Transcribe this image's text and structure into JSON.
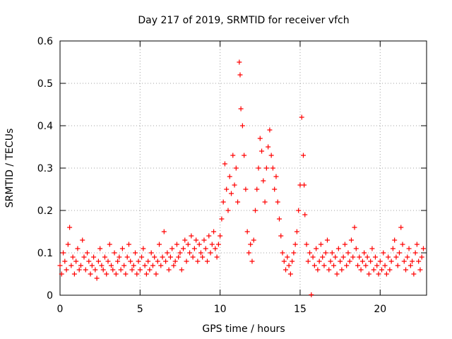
{
  "chart_data": {
    "type": "scatter",
    "title": "Day 217 of 2019, SRMTID for receiver vfch",
    "xlabel": "GPS time / hours",
    "ylabel": "SRMTID / TECUs",
    "xlim": [
      0,
      22.9
    ],
    "ylim": [
      0,
      0.6
    ],
    "x_ticks": [
      0,
      5,
      10,
      15,
      20
    ],
    "x_tick_labels": [
      "0",
      "5",
      "10",
      "15",
      "20"
    ],
    "y_ticks": [
      0,
      0.1,
      0.2,
      0.3,
      0.4,
      0.5,
      0.6
    ],
    "y_tick_labels": [
      "0",
      "0.1",
      "0.2",
      "0.3",
      "0.4",
      "0.5",
      "0.6"
    ],
    "grid": true,
    "marker": "+",
    "series": [
      {
        "name": "SRMTID",
        "color": "#ff0000",
        "x": [
          0.0,
          0.1,
          0.2,
          0.3,
          0.4,
          0.5,
          0.6,
          0.7,
          0.8,
          0.9,
          1.0,
          1.1,
          1.2,
          1.3,
          1.4,
          1.5,
          1.6,
          1.7,
          1.8,
          1.9,
          2.0,
          2.1,
          2.2,
          2.3,
          2.4,
          2.5,
          2.6,
          2.7,
          2.8,
          2.9,
          3.0,
          3.1,
          3.2,
          3.3,
          3.4,
          3.5,
          3.6,
          3.7,
          3.8,
          3.9,
          4.0,
          4.1,
          4.2,
          4.3,
          4.4,
          4.5,
          4.6,
          4.7,
          4.8,
          4.9,
          5.0,
          5.1,
          5.2,
          5.3,
          5.4,
          5.5,
          5.6,
          5.7,
          5.8,
          5.9,
          6.0,
          6.1,
          6.2,
          6.3,
          6.4,
          6.5,
          6.6,
          6.7,
          6.8,
          6.9,
          7.0,
          7.1,
          7.2,
          7.3,
          7.4,
          7.5,
          7.6,
          7.7,
          7.8,
          7.9,
          8.0,
          8.1,
          8.2,
          8.3,
          8.4,
          8.5,
          8.6,
          8.7,
          8.8,
          8.9,
          9.0,
          9.1,
          9.2,
          9.3,
          9.4,
          9.5,
          9.6,
          9.7,
          9.8,
          9.9,
          10.0,
          10.1,
          10.2,
          10.3,
          10.4,
          10.5,
          10.6,
          10.7,
          10.8,
          10.9,
          11.0,
          11.1,
          11.2,
          11.25,
          11.3,
          11.4,
          11.5,
          11.6,
          11.7,
          11.8,
          11.9,
          12.0,
          12.1,
          12.2,
          12.3,
          12.4,
          12.5,
          12.6,
          12.7,
          12.8,
          12.9,
          13.0,
          13.1,
          13.2,
          13.3,
          13.4,
          13.5,
          13.6,
          13.7,
          13.8,
          13.9,
          14.0,
          14.1,
          14.2,
          14.3,
          14.4,
          14.5,
          14.6,
          14.7,
          14.8,
          14.9,
          15.0,
          15.1,
          15.2,
          15.25,
          15.3,
          15.4,
          15.5,
          15.6,
          15.7,
          15.8,
          15.9,
          16.0,
          16.1,
          16.2,
          16.3,
          16.4,
          16.5,
          16.6,
          16.7,
          16.8,
          16.9,
          17.0,
          17.1,
          17.2,
          17.3,
          17.4,
          17.5,
          17.6,
          17.7,
          17.8,
          17.9,
          18.0,
          18.1,
          18.2,
          18.3,
          18.4,
          18.5,
          18.6,
          18.7,
          18.8,
          18.9,
          19.0,
          19.1,
          19.2,
          19.3,
          19.4,
          19.5,
          19.6,
          19.7,
          19.8,
          19.9,
          20.0,
          20.1,
          20.2,
          20.3,
          20.4,
          20.5,
          20.6,
          20.7,
          20.8,
          20.9,
          21.0,
          21.1,
          21.2,
          21.3,
          21.4,
          21.5,
          21.6,
          21.7,
          21.8,
          21.9,
          22.0,
          22.1,
          22.2,
          22.3,
          22.4,
          22.5,
          22.6,
          22.7
        ],
        "y": [
          0.07,
          0.05,
          0.1,
          0.08,
          0.06,
          0.12,
          0.16,
          0.07,
          0.09,
          0.05,
          0.08,
          0.11,
          0.06,
          0.07,
          0.13,
          0.09,
          0.06,
          0.1,
          0.08,
          0.05,
          0.07,
          0.09,
          0.06,
          0.04,
          0.08,
          0.11,
          0.07,
          0.06,
          0.09,
          0.05,
          0.08,
          0.12,
          0.07,
          0.06,
          0.1,
          0.05,
          0.08,
          0.09,
          0.06,
          0.11,
          0.07,
          0.05,
          0.09,
          0.12,
          0.08,
          0.06,
          0.07,
          0.1,
          0.05,
          0.08,
          0.06,
          0.09,
          0.11,
          0.07,
          0.05,
          0.08,
          0.06,
          0.1,
          0.07,
          0.09,
          0.05,
          0.08,
          0.12,
          0.07,
          0.09,
          0.15,
          0.08,
          0.1,
          0.06,
          0.09,
          0.11,
          0.07,
          0.08,
          0.12,
          0.09,
          0.1,
          0.06,
          0.11,
          0.13,
          0.08,
          0.12,
          0.1,
          0.14,
          0.09,
          0.11,
          0.13,
          0.08,
          0.12,
          0.1,
          0.09,
          0.13,
          0.11,
          0.08,
          0.14,
          0.1,
          0.12,
          0.15,
          0.11,
          0.09,
          0.12,
          0.14,
          0.18,
          0.22,
          0.31,
          0.25,
          0.2,
          0.28,
          0.24,
          0.33,
          0.26,
          0.3,
          0.22,
          0.55,
          0.52,
          0.44,
          0.4,
          0.33,
          0.25,
          0.15,
          0.1,
          0.12,
          0.08,
          0.13,
          0.2,
          0.25,
          0.3,
          0.37,
          0.34,
          0.27,
          0.22,
          0.3,
          0.35,
          0.39,
          0.33,
          0.3,
          0.25,
          0.28,
          0.22,
          0.18,
          0.14,
          0.1,
          0.08,
          0.06,
          0.09,
          0.07,
          0.05,
          0.08,
          0.1,
          0.12,
          0.15,
          0.2,
          0.26,
          0.42,
          0.33,
          0.26,
          0.19,
          0.12,
          0.08,
          0.1,
          0.001,
          0.09,
          0.07,
          0.11,
          0.06,
          0.08,
          0.12,
          0.09,
          0.07,
          0.1,
          0.13,
          0.06,
          0.08,
          0.1,
          0.07,
          0.09,
          0.05,
          0.11,
          0.08,
          0.06,
          0.09,
          0.12,
          0.07,
          0.1,
          0.08,
          0.13,
          0.09,
          0.16,
          0.11,
          0.07,
          0.09,
          0.06,
          0.08,
          0.1,
          0.07,
          0.09,
          0.05,
          0.08,
          0.11,
          0.06,
          0.09,
          0.07,
          0.05,
          0.08,
          0.06,
          0.1,
          0.07,
          0.05,
          0.09,
          0.06,
          0.08,
          0.11,
          0.13,
          0.09,
          0.07,
          0.1,
          0.16,
          0.12,
          0.08,
          0.06,
          0.09,
          0.11,
          0.07,
          0.08,
          0.05,
          0.1,
          0.12,
          0.08,
          0.06,
          0.09,
          0.11
        ]
      }
    ]
  }
}
